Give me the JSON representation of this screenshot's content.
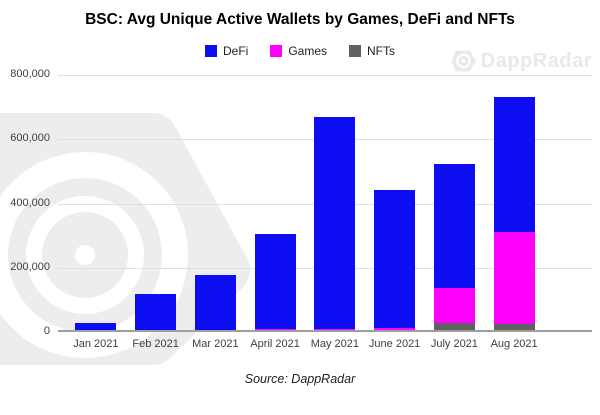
{
  "title": "BSC: Avg Unique Active Wallets by Games, DeFi and NFTs",
  "source": "Source: DappRadar",
  "watermark": {
    "brand": "DappRadar"
  },
  "colors": {
    "defi": "#0d0df2",
    "games": "#ff00ff",
    "nfts": "#606060",
    "gridline": "#e0e0e0",
    "axis": "#9e9e9e",
    "watermark": "#ededed"
  },
  "chart_data": {
    "type": "bar",
    "stacked": true,
    "title": "BSC: Avg Unique Active Wallets by Games, DeFi and NFTs",
    "categories": [
      "Jan 2021",
      "Feb 2021",
      "Mar 2021",
      "April 2021",
      "May 2021",
      "June 2021",
      "July 2021",
      "Aug 2021"
    ],
    "series": [
      {
        "name": "DeFi",
        "color": "#0d0df2",
        "values": [
          27000,
          118000,
          177000,
          297000,
          660000,
          429000,
          385000,
          421000
        ]
      },
      {
        "name": "Games",
        "color": "#ff00ff",
        "values": [
          0,
          0,
          0,
          9000,
          9000,
          12000,
          110000,
          284000
        ]
      },
      {
        "name": "NFTs",
        "color": "#606060",
        "values": [
          0,
          0,
          0,
          0,
          0,
          0,
          27000,
          26000
        ]
      }
    ],
    "stack_order_bottom_to_top": [
      "NFTs",
      "Games",
      "DeFi"
    ],
    "ylim": [
      0,
      800000
    ],
    "yticks": [
      0,
      200000,
      400000,
      600000,
      800000
    ],
    "ytick_labels": [
      "0",
      "200,000",
      "400,000",
      "600,000",
      "800,000"
    ],
    "xlabel": "",
    "ylabel": "",
    "grid": true,
    "legend_position": "top"
  }
}
